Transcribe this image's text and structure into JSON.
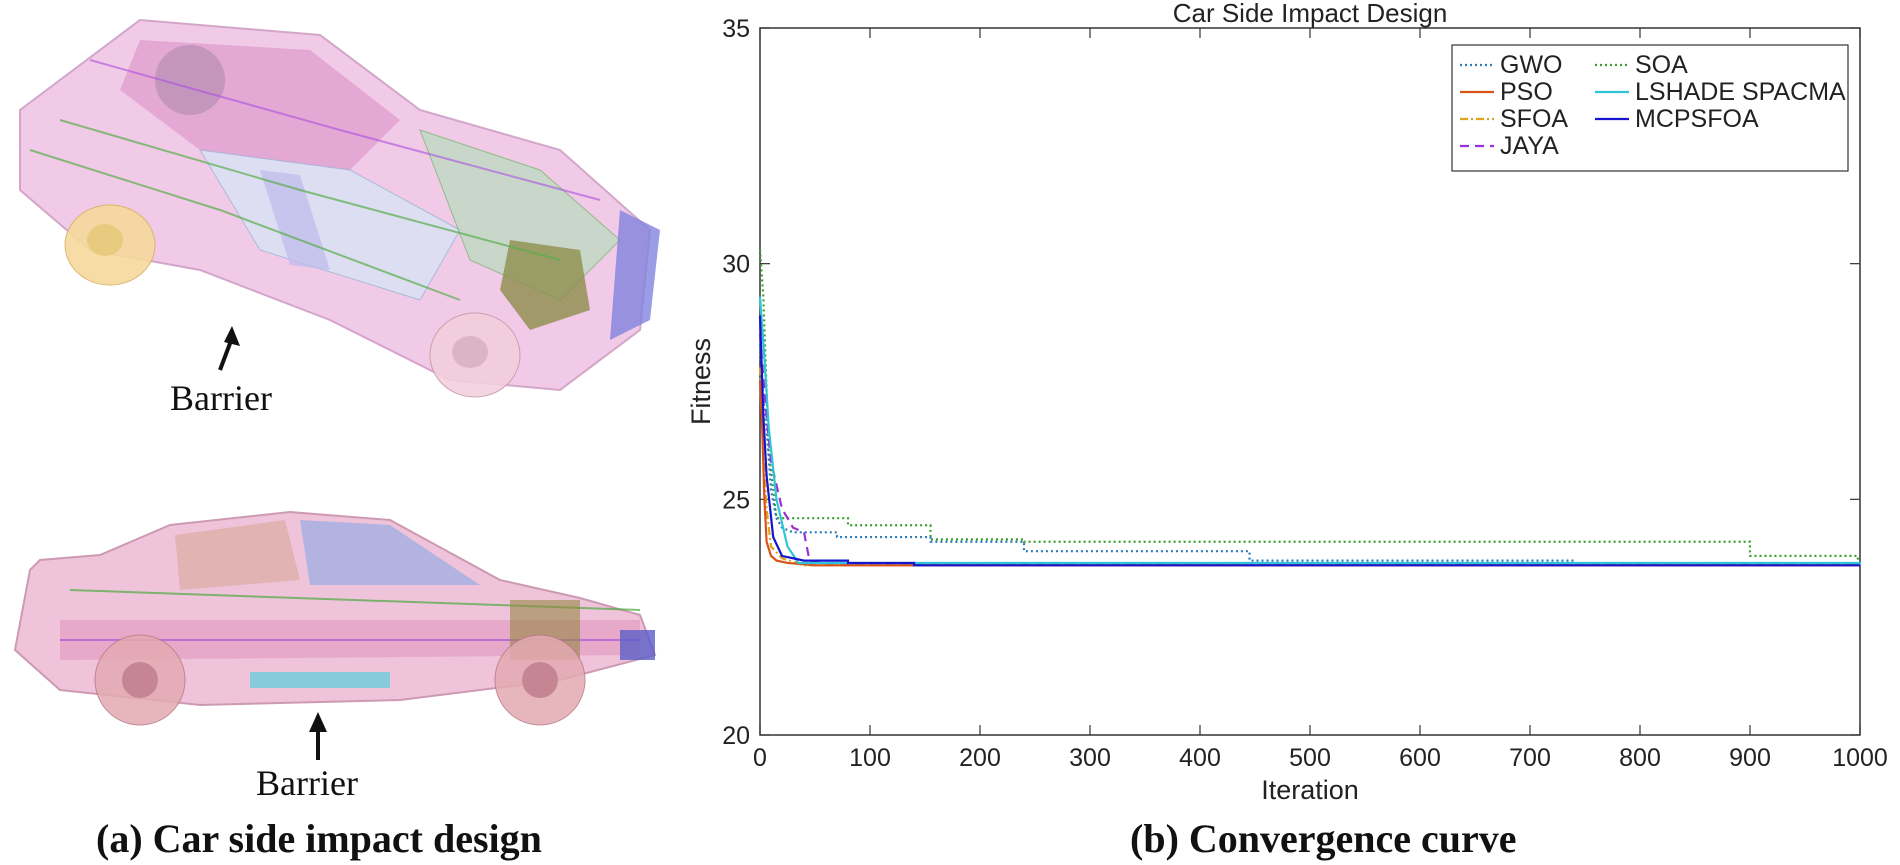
{
  "left_panel": {
    "barrier_label_top": "Barrier",
    "barrier_label_bottom": "Barrier",
    "caption": "(a) Car side impact design"
  },
  "right_panel": {
    "caption": "(b) Convergence curve"
  },
  "chart_data": {
    "type": "line",
    "title": "Car Side Impact Design",
    "xlabel": "Iteration",
    "ylabel": "Fitness",
    "xlim": [
      0,
      1000
    ],
    "ylim": [
      20,
      35
    ],
    "xticks": [
      0,
      100,
      200,
      300,
      400,
      500,
      600,
      700,
      800,
      900,
      1000
    ],
    "yticks": [
      20,
      25,
      30,
      35
    ],
    "legend_position": "top-right",
    "series": [
      {
        "name": "GWO",
        "color": "#2a7bbf",
        "dash": "2,3",
        "x": [
          0,
          3,
          6,
          10,
          15,
          20,
          30,
          70,
          155,
          240,
          445,
          740
        ],
        "y": [
          28.3,
          27.2,
          26.5,
          25.2,
          24.6,
          24.4,
          24.3,
          24.2,
          24.1,
          23.9,
          23.7,
          23.7
        ]
      },
      {
        "name": "PSO",
        "color": "#d95319",
        "dash": "",
        "x": [
          0,
          2,
          4,
          6,
          10,
          15,
          25,
          50,
          1000
        ],
        "y": [
          27.5,
          26.5,
          25.0,
          24.1,
          23.8,
          23.7,
          23.65,
          23.6,
          23.6
        ]
      },
      {
        "name": "SFOA",
        "color": "#e0a11b",
        "dash": "8,3,2,3",
        "x": [
          0,
          3,
          6,
          10,
          20,
          40,
          1000
        ],
        "y": [
          27.8,
          26.0,
          24.8,
          24.0,
          23.75,
          23.6,
          23.6
        ]
      },
      {
        "name": "JAYA",
        "color": "#9b30d9",
        "dash": "9,6",
        "x": [
          0,
          5,
          10,
          20,
          30,
          40,
          45,
          60,
          1000
        ],
        "y": [
          28.5,
          27.0,
          25.8,
          24.8,
          24.4,
          24.3,
          23.7,
          23.62,
          23.6
        ]
      },
      {
        "name": "SOA",
        "color": "#3aa02c",
        "dash": "2,3",
        "x": [
          0,
          3,
          8,
          15,
          80,
          155,
          240,
          900,
          998,
          1000
        ],
        "y": [
          30.3,
          29.3,
          26.0,
          24.6,
          24.45,
          24.15,
          24.1,
          23.8,
          23.65,
          23.6
        ]
      },
      {
        "name": "LSHADE SPACMA",
        "color": "#2ec4d6",
        "dash": "",
        "x": [
          0,
          4,
          8,
          15,
          25,
          35,
          1000
        ],
        "y": [
          29.3,
          28.0,
          26.5,
          25.0,
          24.0,
          23.65,
          23.6
        ]
      },
      {
        "name": "MCPSFOA",
        "color": "#1515d0",
        "dash": "",
        "x": [
          0,
          3,
          6,
          12,
          20,
          40,
          80,
          140,
          1000
        ],
        "y": [
          28.9,
          26.8,
          25.5,
          24.2,
          23.8,
          23.7,
          23.65,
          23.6,
          23.6
        ]
      }
    ]
  }
}
